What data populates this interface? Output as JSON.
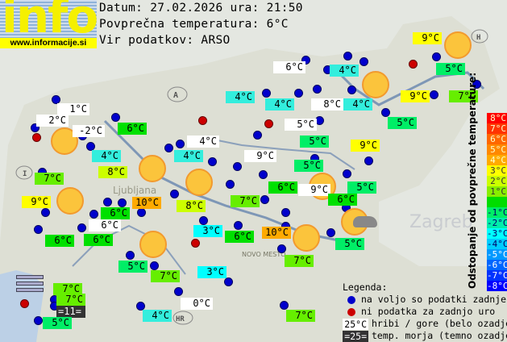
{
  "logo": {
    "text": "info",
    "url": "www.informacije.si"
  },
  "header": {
    "date_line": "Datum: 27.02.2026 ura: 21:50",
    "avg_line": "Povprečna temperatura: 6°C",
    "source_line": "Vir podatkov: ARSO"
  },
  "map_labels": [
    "A",
    "H",
    "I",
    "HR",
    "Zagreb",
    "Ljubljana",
    "NOVO MESTO"
  ],
  "colors": {
    "white": "#ffffff",
    "cyan4": "#33eedd",
    "cyan3": "#00ffff",
    "green6": "#00e000",
    "green5": "#00ee66",
    "yg7": "#66ee00",
    "yg8": "#ccff00",
    "yellow9": "#ffff00",
    "orange10": "#ffaa00",
    "sea": "#333333"
  },
  "stations": [
    {
      "t": "9°C",
      "c": "yellow9"
    },
    {
      "t": "5°C",
      "c": "green5"
    },
    {
      "t": "9°C",
      "c": "yellow9"
    },
    {
      "t": "7°C",
      "c": "yg7"
    },
    {
      "t": "5°C",
      "c": "green5"
    },
    {
      "t": "9°C",
      "c": "yellow9"
    },
    {
      "t": "6°C",
      "c": "white"
    },
    {
      "t": "4°C",
      "c": "cyan4"
    },
    {
      "t": "4°C",
      "c": "cyan4"
    },
    {
      "t": "4°C",
      "c": "cyan4"
    },
    {
      "t": "8°C",
      "c": "white"
    },
    {
      "t": "4°C",
      "c": "cyan4"
    },
    {
      "t": "5°C",
      "c": "white"
    },
    {
      "t": "5°C",
      "c": "green5"
    },
    {
      "t": "9°C",
      "c": "white"
    },
    {
      "t": "5°C",
      "c": "green5"
    },
    {
      "t": "6°C",
      "c": "green6"
    },
    {
      "t": "9°C",
      "c": "white"
    },
    {
      "t": "5°C",
      "c": "green5"
    },
    {
      "t": "6°C",
      "c": "green6"
    },
    {
      "t": "7°C",
      "c": "yg7"
    },
    {
      "t": "10°C",
      "c": "orange10"
    },
    {
      "t": "5°C",
      "c": "green5"
    },
    {
      "t": "7°C",
      "c": "yg7"
    },
    {
      "t": "7°C",
      "c": "yg7"
    },
    {
      "t": "1°C",
      "c": "white"
    },
    {
      "t": "2°C",
      "c": "white"
    },
    {
      "t": "-2°C",
      "c": "white"
    },
    {
      "t": "6°C",
      "c": "green6"
    },
    {
      "t": "4°C",
      "c": "cyan4"
    },
    {
      "t": "4°C",
      "c": "cyan4"
    },
    {
      "t": "4°C",
      "c": "white"
    },
    {
      "t": "8°C",
      "c": "yg8"
    },
    {
      "t": "7°C",
      "c": "yg7"
    },
    {
      "t": "9°C",
      "c": "yellow9"
    },
    {
      "t": "6°C",
      "c": "green6"
    },
    {
      "t": "10°C",
      "c": "orange10"
    },
    {
      "t": "8°C",
      "c": "yg8"
    },
    {
      "t": "6°C",
      "c": "white"
    },
    {
      "t": "6°C",
      "c": "green6"
    },
    {
      "t": "6°C",
      "c": "green6"
    },
    {
      "t": "3°C",
      "c": "cyan3"
    },
    {
      "t": "6°C",
      "c": "green6"
    },
    {
      "t": "5°C",
      "c": "green5"
    },
    {
      "t": "7°C",
      "c": "yg7"
    },
    {
      "t": "3°C",
      "c": "cyan3"
    },
    {
      "t": "7°C",
      "c": "yg7"
    },
    {
      "t": "7°C",
      "c": "yg7"
    },
    {
      "t": "=11=",
      "c": "sea"
    },
    {
      "t": "5°C",
      "c": "green5"
    },
    {
      "t": "0°C",
      "c": "white"
    },
    {
      "t": "4°C",
      "c": "cyan4"
    }
  ],
  "scale": {
    "title": "Odstopanje od povprečne temperature:",
    "steps": [
      {
        "t": "8°C",
        "c": "#ff0000"
      },
      {
        "t": "7°C",
        "c": "#ff3300"
      },
      {
        "t": "6°C",
        "c": "#ff6600"
      },
      {
        "t": "5°C",
        "c": "#ff8800"
      },
      {
        "t": "4°C",
        "c": "#ffaa00"
      },
      {
        "t": "3°C",
        "c": "#ffff00"
      },
      {
        "t": "2°C",
        "c": "#ccff00"
      },
      {
        "t": "1°C",
        "c": "#88ee00"
      },
      {
        "t": "",
        "c": "#00dd00"
      },
      {
        "t": "-1°C",
        "c": "#00ee66"
      },
      {
        "t": "-2°C",
        "c": "#00eeaa"
      },
      {
        "t": "-3°C",
        "c": "#00ffff"
      },
      {
        "t": "-4°C",
        "c": "#00ccff"
      },
      {
        "t": "-5°C",
        "c": "#0099ff"
      },
      {
        "t": "-6°C",
        "c": "#0066ff"
      },
      {
        "t": "-7°C",
        "c": "#0033ff"
      },
      {
        "t": "-8°C",
        "c": "#0000ff"
      }
    ]
  },
  "legend": {
    "title": "Legenda:",
    "blue": "na voljo so podatki zadnje ure",
    "red": "ni podatka za zadnjo uro",
    "mountain_sample": "25°C",
    "mountain": "hribi / gore (belo ozadje)",
    "sea_sample": "=25=",
    "sea": "temp. morja (temno ozadje)"
  }
}
